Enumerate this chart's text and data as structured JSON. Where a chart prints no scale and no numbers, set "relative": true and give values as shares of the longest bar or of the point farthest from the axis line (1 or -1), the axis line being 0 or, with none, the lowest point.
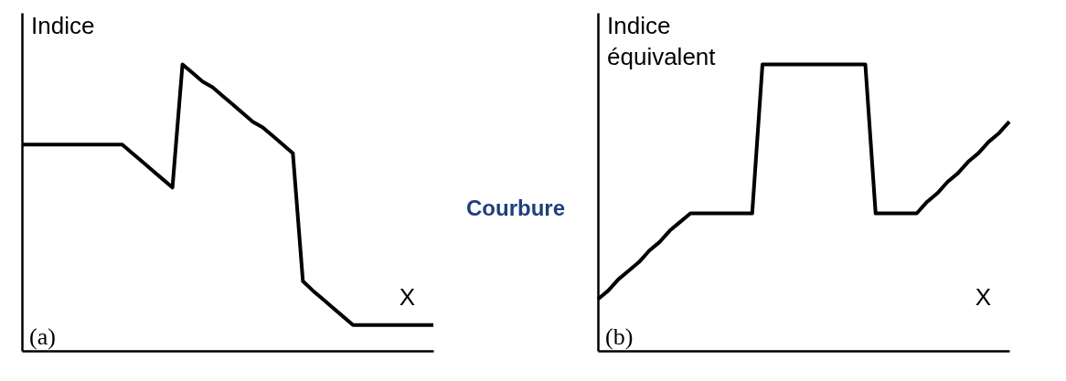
{
  "chart_data": [
    {
      "type": "line",
      "relative": true,
      "ylabel": "Indice",
      "xlabel": "X",
      "annotations": [
        "(a)"
      ],
      "grid": false,
      "marker": "none",
      "line_style": "solid",
      "categories": [
        null,
        null,
        null,
        null,
        null,
        null,
        null,
        null,
        null,
        null,
        null,
        null,
        null,
        null,
        null,
        null,
        null,
        null,
        null,
        null,
        null,
        null,
        null,
        null,
        null,
        null,
        null,
        null,
        null,
        null,
        null,
        null,
        null,
        null,
        null,
        null,
        null,
        null,
        null,
        null,
        null,
        null
      ],
      "series": [
        {
          "color": "#000000",
          "values": [
            0.72,
            0.72,
            0.72,
            0.72,
            0.72,
            0.72,
            0.72,
            0.72,
            0.72,
            0.72,
            0.72,
            0.69,
            0.66,
            0.63,
            0.6,
            0.57,
            1.0,
            0.97,
            0.94,
            0.92,
            0.89,
            0.86,
            0.83,
            0.8,
            0.78,
            0.75,
            0.72,
            0.69,
            0.243,
            0.21,
            0.18,
            0.15,
            0.12,
            0.09,
            0.09,
            0.09,
            0.09,
            0.09,
            0.09,
            0.09,
            0.09,
            0.09
          ]
        }
      ]
    },
    {
      "type": "other",
      "annotations": [
        "Courbure"
      ]
    },
    {
      "type": "line",
      "relative": true,
      "ylabel": "Indice équivalent",
      "xlabel": "X",
      "annotations": [
        "(b)"
      ],
      "grid": false,
      "marker": "none",
      "line_style": "solid",
      "categories": [
        null,
        null,
        null,
        null,
        null,
        null,
        null,
        null,
        null,
        null,
        null,
        null,
        null,
        null,
        null,
        null,
        null,
        null,
        null,
        null,
        null,
        null,
        null,
        null,
        null,
        null,
        null,
        null,
        null,
        null,
        null,
        null,
        null,
        null,
        null,
        null,
        null,
        null,
        null,
        null,
        null
      ],
      "series": [
        {
          "color": "#000000",
          "values": [
            0.18,
            0.21,
            0.25,
            0.28,
            0.31,
            0.35,
            0.38,
            0.42,
            0.45,
            0.48,
            0.48,
            0.48,
            0.48,
            0.48,
            0.48,
            0.48,
            1,
            1,
            1,
            1,
            1,
            1,
            1,
            1,
            1,
            1,
            1,
            0.48,
            0.48,
            0.48,
            0.48,
            0.48,
            0.52,
            0.55,
            0.59,
            0.62,
            0.66,
            0.69,
            0.73,
            0.76,
            0.8
          ]
        }
      ]
    }
  ]
}
